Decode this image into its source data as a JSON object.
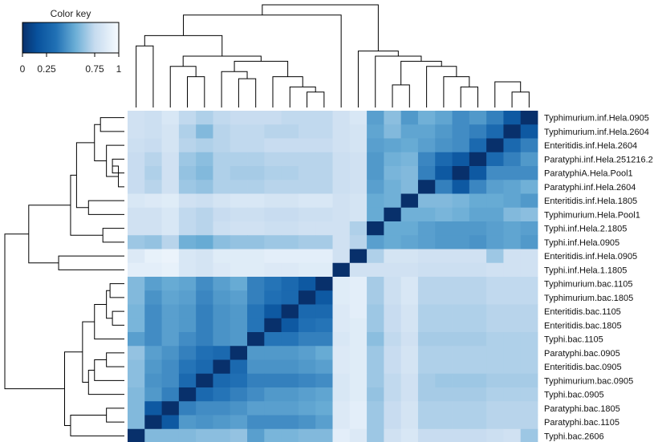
{
  "chart_data": {
    "type": "heatmap",
    "title": "",
    "xlabel": "",
    "ylabel": "",
    "color_key": {
      "label": "Color key",
      "ticks": [
        "0",
        "0.25",
        "0.75",
        "1"
      ],
      "tick_values": [
        0,
        0.25,
        0.75,
        1
      ],
      "range": [
        0,
        1
      ],
      "low_color": "#08306b",
      "high_color": "#f7fbff"
    },
    "row_labels": [
      "Typhimurium.inf.Hela.0905",
      "Typhimurium.inf.Hela.2604",
      "Enteritidis.inf.Hela.2604",
      "Paratyphi.inf.Hela.251216.2",
      "ParatyphiA.Hela.Pool1",
      "Paratyphi.inf.Hela.2604",
      "Enteritidis.inf.Hela.1805",
      "Typhimurium.Hela.Pool1",
      "Typhi.inf.Hela.2.1805",
      "Typhi.inf.Hela.0905",
      "Enteritidis.inf.Hela.0905",
      "Typhi.inf.Hela.1.1805",
      "Typhimurium.bac.1105",
      "Typhimurium.bac.1805",
      "Enteritidis.bac.1105",
      "Enteritidis.bac.1805",
      "Typhi.bac.1105",
      "Paratyphi.bac.0905",
      "Enteritidis.bac.0905",
      "Typhimurium.bac.0905",
      "Typhi.bac.0905",
      "Paratyphi.bac.1805",
      "Paratyphi.bac.1105",
      "Typhi.bac.2606"
    ],
    "matrix": [
      [
        0.8,
        0.78,
        0.84,
        0.74,
        0.7,
        0.74,
        0.76,
        0.76,
        0.76,
        0.74,
        0.74,
        0.74,
        0.8,
        0.84,
        0.5,
        0.62,
        0.48,
        0.56,
        0.52,
        0.44,
        0.48,
        0.4,
        0.2,
        0.0
      ],
      [
        0.8,
        0.78,
        0.82,
        0.7,
        0.6,
        0.72,
        0.74,
        0.74,
        0.72,
        0.72,
        0.74,
        0.74,
        0.8,
        0.82,
        0.52,
        0.6,
        0.52,
        0.52,
        0.48,
        0.44,
        0.4,
        0.3,
        0.0,
        0.2
      ],
      [
        0.78,
        0.76,
        0.82,
        0.72,
        0.7,
        0.72,
        0.74,
        0.74,
        0.76,
        0.76,
        0.76,
        0.76,
        0.8,
        0.82,
        0.5,
        0.52,
        0.54,
        0.5,
        0.46,
        0.44,
        0.3,
        0.0,
        0.3,
        0.4
      ],
      [
        0.76,
        0.72,
        0.8,
        0.66,
        0.62,
        0.7,
        0.7,
        0.7,
        0.72,
        0.72,
        0.72,
        0.72,
        0.78,
        0.8,
        0.48,
        0.56,
        0.58,
        0.42,
        0.3,
        0.2,
        0.0,
        0.3,
        0.4,
        0.48
      ],
      [
        0.76,
        0.7,
        0.8,
        0.64,
        0.6,
        0.7,
        0.68,
        0.68,
        0.7,
        0.7,
        0.72,
        0.72,
        0.78,
        0.8,
        0.48,
        0.58,
        0.6,
        0.4,
        0.2,
        0.0,
        0.2,
        0.44,
        0.44,
        0.44
      ],
      [
        0.76,
        0.72,
        0.8,
        0.66,
        0.64,
        0.7,
        0.7,
        0.7,
        0.72,
        0.72,
        0.72,
        0.72,
        0.78,
        0.8,
        0.5,
        0.56,
        0.6,
        0.0,
        0.4,
        0.2,
        0.42,
        0.5,
        0.52,
        0.56
      ],
      [
        0.84,
        0.86,
        0.88,
        0.8,
        0.78,
        0.82,
        0.84,
        0.84,
        0.82,
        0.82,
        0.84,
        0.84,
        0.8,
        0.82,
        0.54,
        0.56,
        0.0,
        0.6,
        0.6,
        0.58,
        0.54,
        0.54,
        0.52,
        0.48
      ],
      [
        0.8,
        0.8,
        0.84,
        0.74,
        0.72,
        0.76,
        0.78,
        0.78,
        0.76,
        0.76,
        0.78,
        0.78,
        0.8,
        0.82,
        0.54,
        0.0,
        0.56,
        0.56,
        0.58,
        0.56,
        0.52,
        0.52,
        0.6,
        0.62
      ],
      [
        0.8,
        0.8,
        0.84,
        0.74,
        0.72,
        0.78,
        0.8,
        0.8,
        0.78,
        0.78,
        0.8,
        0.8,
        0.8,
        0.7,
        0.0,
        0.54,
        0.54,
        0.5,
        0.48,
        0.48,
        0.48,
        0.5,
        0.52,
        0.5
      ],
      [
        0.66,
        0.64,
        0.72,
        0.56,
        0.54,
        0.62,
        0.64,
        0.64,
        0.66,
        0.66,
        0.68,
        0.68,
        0.8,
        0.72,
        0.5,
        0.54,
        0.52,
        0.5,
        0.48,
        0.48,
        0.46,
        0.5,
        0.52,
        0.48
      ],
      [
        0.86,
        0.92,
        0.94,
        0.84,
        0.82,
        0.88,
        0.88,
        0.88,
        0.9,
        0.9,
        0.9,
        0.9,
        0.8,
        0.0,
        0.7,
        0.82,
        0.82,
        0.8,
        0.8,
        0.8,
        0.8,
        0.66,
        0.8,
        0.8
      ],
      [
        0.9,
        0.9,
        0.92,
        0.84,
        0.82,
        0.86,
        0.88,
        0.88,
        0.86,
        0.86,
        0.88,
        0.88,
        0.0,
        0.8,
        0.8,
        0.8,
        0.8,
        0.78,
        0.78,
        0.78,
        0.78,
        0.8,
        0.8,
        0.8
      ],
      [
        0.6,
        0.5,
        0.54,
        0.52,
        0.44,
        0.5,
        0.54,
        0.4,
        0.36,
        0.3,
        0.2,
        0.0,
        0.88,
        0.9,
        0.68,
        0.78,
        0.84,
        0.72,
        0.72,
        0.72,
        0.72,
        0.74,
        0.74,
        0.74
      ],
      [
        0.6,
        0.46,
        0.52,
        0.5,
        0.42,
        0.48,
        0.5,
        0.4,
        0.34,
        0.3,
        0.0,
        0.2,
        0.88,
        0.9,
        0.68,
        0.78,
        0.84,
        0.72,
        0.72,
        0.72,
        0.72,
        0.74,
        0.74,
        0.74
      ],
      [
        0.58,
        0.44,
        0.5,
        0.48,
        0.4,
        0.46,
        0.48,
        0.36,
        0.2,
        0.0,
        0.3,
        0.3,
        0.86,
        0.9,
        0.66,
        0.76,
        0.82,
        0.7,
        0.7,
        0.7,
        0.7,
        0.72,
        0.72,
        0.72
      ],
      [
        0.58,
        0.44,
        0.5,
        0.48,
        0.4,
        0.46,
        0.48,
        0.36,
        0.0,
        0.2,
        0.34,
        0.36,
        0.86,
        0.88,
        0.66,
        0.76,
        0.82,
        0.7,
        0.7,
        0.7,
        0.7,
        0.72,
        0.72,
        0.72
      ],
      [
        0.5,
        0.44,
        0.5,
        0.44,
        0.4,
        0.46,
        0.48,
        0.0,
        0.36,
        0.36,
        0.4,
        0.4,
        0.84,
        0.88,
        0.62,
        0.74,
        0.8,
        0.68,
        0.68,
        0.68,
        0.68,
        0.7,
        0.7,
        0.7
      ],
      [
        0.64,
        0.5,
        0.46,
        0.4,
        0.34,
        0.3,
        0.0,
        0.48,
        0.48,
        0.48,
        0.5,
        0.54,
        0.86,
        0.88,
        0.66,
        0.76,
        0.82,
        0.7,
        0.7,
        0.7,
        0.7,
        0.7,
        0.7,
        0.7
      ],
      [
        0.62,
        0.48,
        0.44,
        0.36,
        0.3,
        0.0,
        0.3,
        0.46,
        0.46,
        0.46,
        0.48,
        0.5,
        0.86,
        0.88,
        0.66,
        0.76,
        0.82,
        0.7,
        0.7,
        0.7,
        0.7,
        0.7,
        0.7,
        0.7
      ],
      [
        0.62,
        0.46,
        0.44,
        0.3,
        0.0,
        0.3,
        0.34,
        0.4,
        0.4,
        0.4,
        0.42,
        0.44,
        0.84,
        0.88,
        0.66,
        0.74,
        0.8,
        0.68,
        0.66,
        0.66,
        0.66,
        0.68,
        0.68,
        0.68
      ],
      [
        0.6,
        0.48,
        0.4,
        0.0,
        0.3,
        0.36,
        0.4,
        0.44,
        0.48,
        0.48,
        0.5,
        0.52,
        0.84,
        0.88,
        0.64,
        0.74,
        0.8,
        0.68,
        0.68,
        0.68,
        0.68,
        0.7,
        0.7,
        0.7
      ],
      [
        0.6,
        0.2,
        0.0,
        0.4,
        0.44,
        0.44,
        0.46,
        0.5,
        0.5,
        0.5,
        0.52,
        0.54,
        0.86,
        0.9,
        0.66,
        0.76,
        0.82,
        0.7,
        0.7,
        0.7,
        0.7,
        0.72,
        0.72,
        0.72
      ],
      [
        0.6,
        0.0,
        0.2,
        0.48,
        0.46,
        0.48,
        0.5,
        0.44,
        0.44,
        0.44,
        0.46,
        0.5,
        0.86,
        0.9,
        0.66,
        0.76,
        0.82,
        0.7,
        0.7,
        0.7,
        0.7,
        0.72,
        0.72,
        0.72
      ],
      [
        0.0,
        0.6,
        0.6,
        0.6,
        0.62,
        0.62,
        0.64,
        0.5,
        0.58,
        0.58,
        0.6,
        0.6,
        0.9,
        0.86,
        0.66,
        0.8,
        0.84,
        0.76,
        0.76,
        0.76,
        0.76,
        0.78,
        0.8,
        0.66
      ]
    ],
    "row_dendrogram": {
      "leaf_order": [
        0,
        1,
        2,
        3,
        4,
        5,
        6,
        7,
        8,
        9,
        10,
        11,
        12,
        13,
        14,
        15,
        16,
        17,
        18,
        19,
        20,
        21,
        22,
        23
      ],
      "merges": [
        [
          0,
          1,
          0.8
        ],
        [
          3,
          4,
          0.9
        ],
        [
          -2,
          5,
          0.95
        ],
        [
          2,
          -3,
          0.85
        ],
        [
          -1,
          -4,
          0.75
        ],
        [
          6,
          7,
          0.7
        ],
        [
          -5,
          -6,
          0.6
        ],
        [
          8,
          9,
          0.82
        ],
        [
          -7,
          -8,
          0.55
        ],
        [
          10,
          11,
          0.45
        ],
        [
          -9,
          -10,
          0.2
        ],
        [
          12,
          13,
          0.88
        ],
        [
          14,
          15,
          0.9
        ],
        [
          -12,
          -13,
          0.85
        ],
        [
          -14,
          16,
          0.75
        ],
        [
          17,
          18,
          0.85
        ],
        [
          -16,
          19,
          0.75
        ],
        [
          -17,
          20,
          0.7
        ],
        [
          -15,
          -18,
          0.65
        ],
        [
          21,
          22,
          0.85
        ],
        [
          -20,
          23,
          0.55
        ],
        [
          -19,
          -21,
          0.5
        ],
        [
          -11,
          -22,
          0.0
        ]
      ]
    },
    "col_dendrogram": {
      "merges": [
        [
          23,
          22,
          0.85
        ],
        [
          -1,
          21,
          0.75
        ],
        [
          20,
          19,
          0.8
        ],
        [
          -3,
          18,
          0.7
        ],
        [
          -4,
          17,
          0.6
        ],
        [
          16,
          15,
          0.78
        ],
        [
          -6,
          -5,
          0.55
        ],
        [
          14,
          -7,
          0.5
        ],
        [
          13,
          -8,
          0.45
        ],
        [
          11,
          10,
          0.85
        ],
        [
          -10,
          9,
          0.8
        ],
        [
          -11,
          8,
          0.7
        ],
        [
          7,
          6,
          0.72
        ],
        [
          -13,
          5,
          0.65
        ],
        [
          -12,
          -14,
          0.55
        ],
        [
          4,
          3,
          0.7
        ],
        [
          -16,
          2,
          0.6
        ],
        [
          -15,
          -17,
          0.5
        ],
        [
          1,
          0,
          0.4
        ],
        [
          -18,
          -19,
          0.3
        ],
        [
          12,
          -20,
          0.1
        ],
        [
          -9,
          -21,
          0.0
        ]
      ]
    }
  }
}
